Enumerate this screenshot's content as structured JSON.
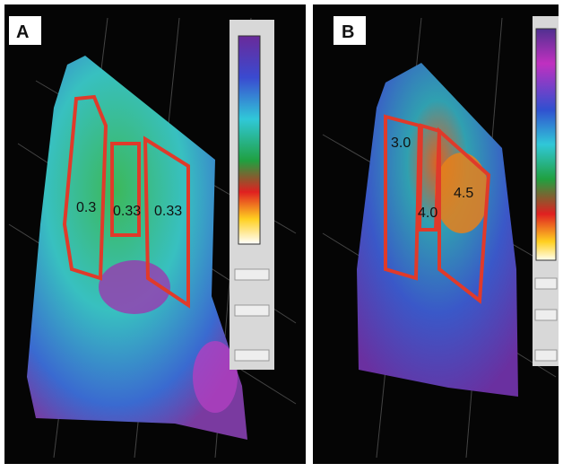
{
  "panels": [
    {
      "label": "A",
      "regions": [
        "0.3",
        "0.33",
        "0.33"
      ]
    },
    {
      "label": "B",
      "regions": [
        "3.0",
        "4.0",
        "4.5"
      ]
    }
  ]
}
